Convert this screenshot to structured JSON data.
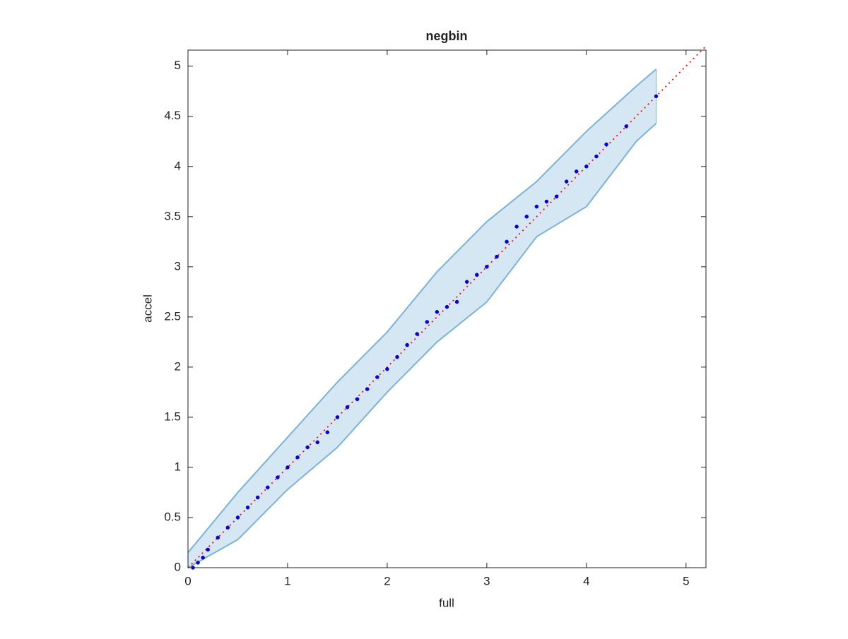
{
  "chart_data": {
    "type": "scatter",
    "title": "negbin",
    "x_label": "full",
    "y_label": "accel",
    "xlim": [
      0,
      5.2
    ],
    "ylim": [
      0,
      5.16
    ],
    "xticks": [
      0,
      1,
      2,
      3,
      4,
      5
    ],
    "yticks": [
      0,
      0.5,
      1,
      1.5,
      2,
      2.5,
      3,
      3.5,
      4,
      4.5,
      5
    ],
    "series": [
      {
        "color": "#0000ff",
        "x": [
          0.05,
          0.1,
          0.15,
          0.2,
          0.3,
          0.4,
          0.5,
          0.6,
          0.7,
          0.8,
          0.9,
          1.0,
          1.1,
          1.2,
          1.3,
          1.4,
          1.5,
          1.6,
          1.7,
          1.8,
          1.9,
          2.0,
          2.1,
          2.2,
          2.3,
          2.4,
          2.5,
          2.6,
          2.7,
          2.8,
          2.9,
          3.0,
          3.1,
          3.2,
          3.3,
          3.4,
          3.5,
          3.6,
          3.7,
          3.8,
          3.9,
          4.0,
          4.1,
          4.2,
          4.4,
          4.7
        ],
        "values": [
          0.0,
          0.05,
          0.1,
          0.18,
          0.3,
          0.4,
          0.5,
          0.6,
          0.7,
          0.8,
          0.9,
          1.0,
          1.1,
          1.2,
          1.25,
          1.35,
          1.5,
          1.6,
          1.68,
          1.78,
          1.9,
          1.98,
          2.1,
          2.22,
          2.33,
          2.45,
          2.55,
          2.6,
          2.65,
          2.85,
          2.92,
          3.0,
          3.1,
          3.25,
          3.4,
          3.5,
          3.6,
          3.65,
          3.7,
          3.85,
          3.95,
          4.0,
          4.1,
          4.22,
          4.4,
          4.7
        ]
      }
    ],
    "band": {
      "color": "#7ab3d9",
      "fill": "#d6e7f4",
      "x": [
        0,
        0.5,
        1,
        1.5,
        2,
        2.5,
        3,
        3.5,
        4,
        4.5,
        4.7
      ],
      "upper": [
        0.15,
        0.75,
        1.3,
        1.85,
        2.35,
        2.95,
        3.45,
        3.85,
        4.35,
        4.8,
        4.97
      ],
      "lower": [
        0,
        0.28,
        0.78,
        1.2,
        1.75,
        2.25,
        2.65,
        3.3,
        3.6,
        4.25,
        4.43
      ]
    },
    "reference_line": {
      "color": "#ff0000",
      "x": [
        0,
        5.2
      ],
      "y": [
        0,
        5.2
      ]
    }
  }
}
